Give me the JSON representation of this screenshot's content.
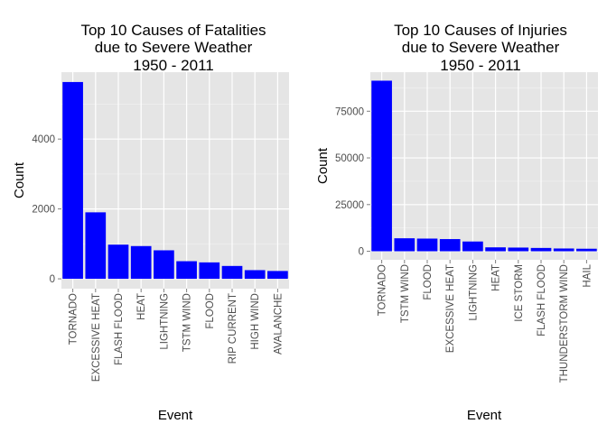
{
  "chart_data": [
    {
      "type": "bar",
      "title": [
        "Top 10 Causes of Fatalities",
        "due to Severe Weather",
        "1950 - 2011"
      ],
      "xlabel": "Event",
      "ylabel": "Count",
      "categories": [
        "TORNADO",
        "EXCESSIVE HEAT",
        "FLASH FLOOD",
        "HEAT",
        "LIGHTNING",
        "TSTM WIND",
        "FLOOD",
        "RIP CURRENT",
        "HIGH WIND",
        "AVALANCHE"
      ],
      "values": [
        5633,
        1903,
        978,
        937,
        816,
        504,
        470,
        368,
        248,
        224
      ],
      "yticks": [
        0,
        2000,
        4000
      ],
      "ylim": [
        -282,
        5915
      ],
      "bar_color": "#0000ff",
      "panel_color": "#e5e5e5",
      "grid": true,
      "legend": "none"
    },
    {
      "type": "bar",
      "title": [
        "Top 10 Causes of Injuries",
        "due to Severe Weather",
        "1950 - 2011"
      ],
      "xlabel": "Event",
      "ylabel": "Count",
      "categories": [
        "TORNADO",
        "TSTM WIND",
        "FLOOD",
        "EXCESSIVE HEAT",
        "LIGHTNING",
        "HEAT",
        "ICE STORM",
        "FLASH FLOOD",
        "THUNDERSTORM WIND",
        "HAIL"
      ],
      "values": [
        91346,
        6957,
        6789,
        6525,
        5230,
        2100,
        1975,
        1777,
        1488,
        1361
      ],
      "yticks": [
        0,
        25000,
        50000,
        75000
      ],
      "ylim": [
        -4567,
        95913
      ],
      "bar_color": "#0000ff",
      "panel_color": "#e5e5e5",
      "grid": true,
      "legend": "none"
    }
  ]
}
